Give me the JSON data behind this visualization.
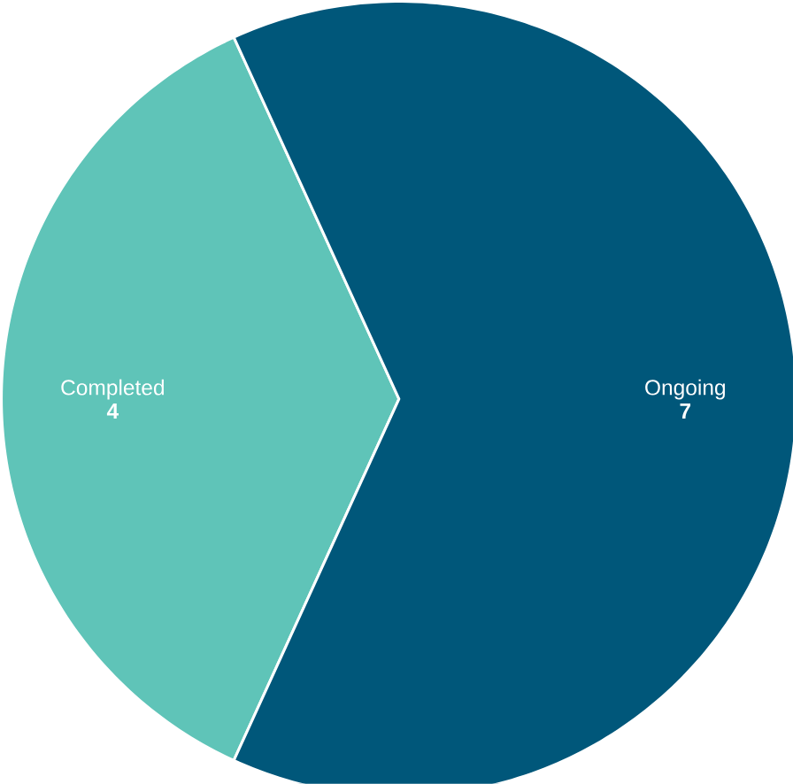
{
  "chart_data": {
    "type": "pie",
    "categories": [
      "Completed",
      "Ongoing"
    ],
    "values": [
      4,
      7
    ],
    "colors": [
      "#5fc4b8",
      "#00577a"
    ],
    "data_labels": true
  }
}
